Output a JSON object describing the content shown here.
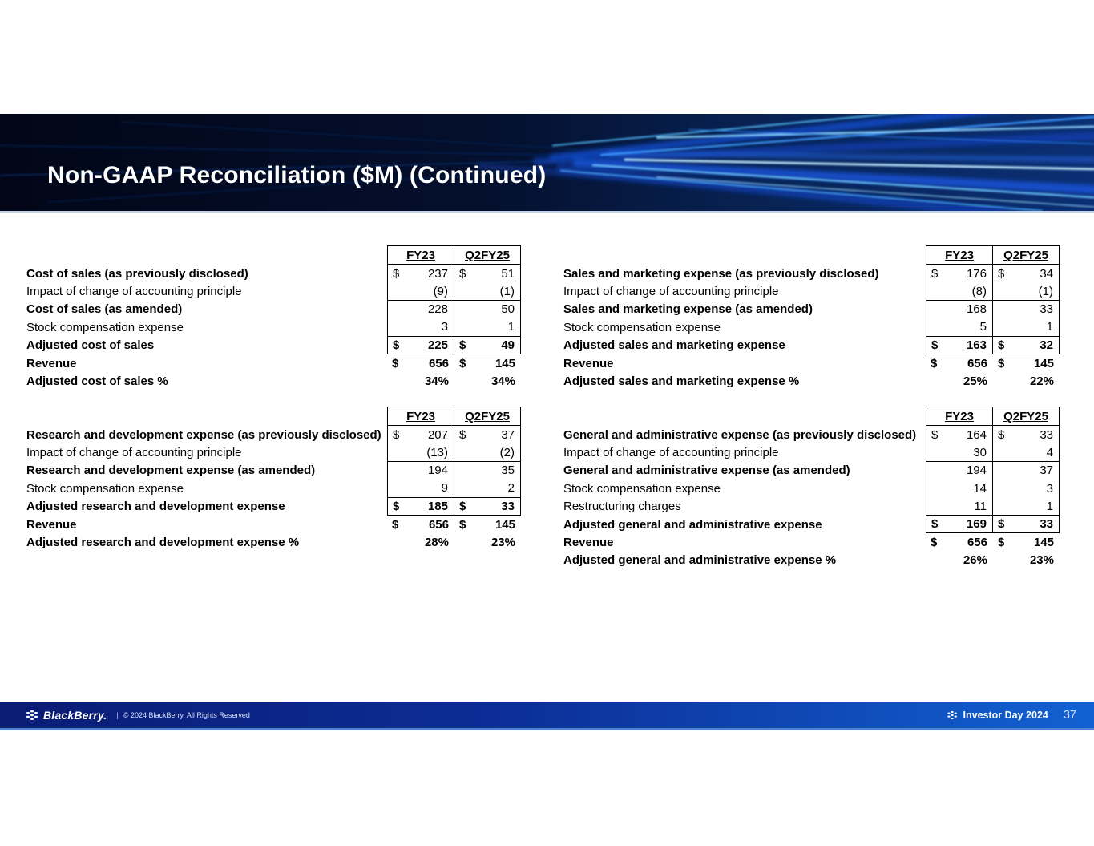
{
  "slide": {
    "title": "Non-GAAP Reconciliation ($M) (Continued)"
  },
  "table_columns": [
    "FY23",
    "Q2FY25"
  ],
  "tables": [
    {
      "id": "cost-of-sales",
      "rows": [
        {
          "label": "Cost of sales (as previously disclosed)",
          "label_bold": true,
          "value_bold": false,
          "cur1": "$",
          "val1": "237",
          "cur2": "$",
          "val2": "51",
          "boxed": true,
          "rule_below": false
        },
        {
          "label": "Impact of change of accounting principle",
          "label_bold": false,
          "value_bold": false,
          "cur1": "",
          "val1": "(9)",
          "cur2": "",
          "val2": "(1)",
          "boxed": true,
          "rule_below": true
        },
        {
          "label": "Cost of sales (as amended)",
          "label_bold": true,
          "value_bold": false,
          "cur1": "",
          "val1": "228",
          "cur2": "",
          "val2": "50",
          "boxed": true,
          "rule_below": false
        },
        {
          "label": "Stock compensation expense",
          "label_bold": false,
          "value_bold": false,
          "cur1": "",
          "val1": "3",
          "cur2": "",
          "val2": "1",
          "boxed": true,
          "rule_below": true
        },
        {
          "label": "Adjusted cost of sales",
          "label_bold": true,
          "value_bold": true,
          "cur1": "$",
          "val1": "225",
          "cur2": "$",
          "val2": "49",
          "boxed": true,
          "rule_below": true
        },
        {
          "label": "Revenue",
          "label_bold": true,
          "value_bold": true,
          "cur1": "$",
          "val1": "656",
          "cur2": "$",
          "val2": "145",
          "boxed": false,
          "rule_below": false
        },
        {
          "label": "Adjusted cost of sales %",
          "label_bold": true,
          "value_bold": true,
          "cur1": "",
          "val1": "34%",
          "cur2": "",
          "val2": "34%",
          "boxed": false,
          "rule_below": false
        }
      ]
    },
    {
      "id": "sales-and-marketing",
      "rows": [
        {
          "label": "Sales and marketing expense (as previously disclosed)",
          "label_bold": true,
          "value_bold": false,
          "cur1": "$",
          "val1": "176",
          "cur2": "$",
          "val2": "34",
          "boxed": true,
          "rule_below": false
        },
        {
          "label": "Impact of change of accounting principle",
          "label_bold": false,
          "value_bold": false,
          "cur1": "",
          "val1": "(8)",
          "cur2": "",
          "val2": "(1)",
          "boxed": true,
          "rule_below": true
        },
        {
          "label": "Sales and marketing expense (as amended)",
          "label_bold": true,
          "value_bold": false,
          "cur1": "",
          "val1": "168",
          "cur2": "",
          "val2": "33",
          "boxed": true,
          "rule_below": false
        },
        {
          "label": "Stock compensation expense",
          "label_bold": false,
          "value_bold": false,
          "cur1": "",
          "val1": "5",
          "cur2": "",
          "val2": "1",
          "boxed": true,
          "rule_below": true
        },
        {
          "label": "Adjusted sales and marketing expense",
          "label_bold": true,
          "value_bold": true,
          "cur1": "$",
          "val1": "163",
          "cur2": "$",
          "val2": "32",
          "boxed": true,
          "rule_below": true
        },
        {
          "label": "Revenue",
          "label_bold": true,
          "value_bold": true,
          "cur1": "$",
          "val1": "656",
          "cur2": "$",
          "val2": "145",
          "boxed": false,
          "rule_below": false
        },
        {
          "label": "Adjusted sales and marketing expense %",
          "label_bold": true,
          "value_bold": true,
          "cur1": "",
          "val1": "25%",
          "cur2": "",
          "val2": "22%",
          "boxed": false,
          "rule_below": false
        }
      ]
    },
    {
      "id": "research-and-development",
      "rows": [
        {
          "label": "Research and development expense (as previously disclosed)",
          "label_bold": true,
          "value_bold": false,
          "cur1": "$",
          "val1": "207",
          "cur2": "$",
          "val2": "37",
          "boxed": true,
          "rule_below": false
        },
        {
          "label": "Impact of change of accounting principle",
          "label_bold": false,
          "value_bold": false,
          "cur1": "",
          "val1": "(13)",
          "cur2": "",
          "val2": "(2)",
          "boxed": true,
          "rule_below": true
        },
        {
          "label": "Research and development expense (as amended)",
          "label_bold": true,
          "value_bold": false,
          "cur1": "",
          "val1": "194",
          "cur2": "",
          "val2": "35",
          "boxed": true,
          "rule_below": false
        },
        {
          "label": "Stock compensation expense",
          "label_bold": false,
          "value_bold": false,
          "cur1": "",
          "val1": "9",
          "cur2": "",
          "val2": "2",
          "boxed": true,
          "rule_below": true
        },
        {
          "label": "Adjusted research and development expense",
          "label_bold": true,
          "value_bold": true,
          "cur1": "$",
          "val1": "185",
          "cur2": "$",
          "val2": "33",
          "boxed": true,
          "rule_below": true
        },
        {
          "label": "Revenue",
          "label_bold": true,
          "value_bold": true,
          "cur1": "$",
          "val1": "656",
          "cur2": "$",
          "val2": "145",
          "boxed": false,
          "rule_below": false
        },
        {
          "label": "Adjusted research and development expense %",
          "label_bold": true,
          "value_bold": true,
          "cur1": "",
          "val1": "28%",
          "cur2": "",
          "val2": "23%",
          "boxed": false,
          "rule_below": false
        }
      ]
    },
    {
      "id": "general-and-administrative",
      "rows": [
        {
          "label": "General and administrative expense (as previously disclosed)",
          "label_bold": true,
          "value_bold": false,
          "cur1": "$",
          "val1": "164",
          "cur2": "$",
          "val2": "33",
          "boxed": true,
          "rule_below": false
        },
        {
          "label": "Impact of change of accounting principle",
          "label_bold": false,
          "value_bold": false,
          "cur1": "",
          "val1": "30",
          "cur2": "",
          "val2": "4",
          "boxed": true,
          "rule_below": true
        },
        {
          "label": "General and administrative expense (as amended)",
          "label_bold": true,
          "value_bold": false,
          "cur1": "",
          "val1": "194",
          "cur2": "",
          "val2": "37",
          "boxed": true,
          "rule_below": false
        },
        {
          "label": "Stock compensation expense",
          "label_bold": false,
          "value_bold": false,
          "cur1": "",
          "val1": "14",
          "cur2": "",
          "val2": "3",
          "boxed": true,
          "rule_below": false
        },
        {
          "label": "Restructuring charges",
          "label_bold": false,
          "value_bold": false,
          "cur1": "",
          "val1": "11",
          "cur2": "",
          "val2": "1",
          "boxed": true,
          "rule_below": true
        },
        {
          "label": "Adjusted general and administrative expense",
          "label_bold": true,
          "value_bold": true,
          "cur1": "$",
          "val1": "169",
          "cur2": "$",
          "val2": "33",
          "boxed": true,
          "rule_below": true
        },
        {
          "label": "Revenue",
          "label_bold": true,
          "value_bold": true,
          "cur1": "$",
          "val1": "656",
          "cur2": "$",
          "val2": "145",
          "boxed": false,
          "rule_below": false
        },
        {
          "label": "Adjusted general and administrative expense %",
          "label_bold": true,
          "value_bold": true,
          "cur1": "",
          "val1": "26%",
          "cur2": "",
          "val2": "23%",
          "boxed": false,
          "rule_below": false
        }
      ]
    }
  ],
  "footer": {
    "brand": "BlackBerry.",
    "separator": "|",
    "copyright": "© 2024 BlackBerry. All Rights Reserved",
    "event": "Investor Day 2024",
    "page_number": "37"
  },
  "colors": {
    "footer_gradient_start": "#0a1c74",
    "footer_gradient_end": "#1261d2",
    "banner_base": "#020617",
    "streak_blue": "#1855e0",
    "streak_cyan": "#8fd9ff"
  }
}
